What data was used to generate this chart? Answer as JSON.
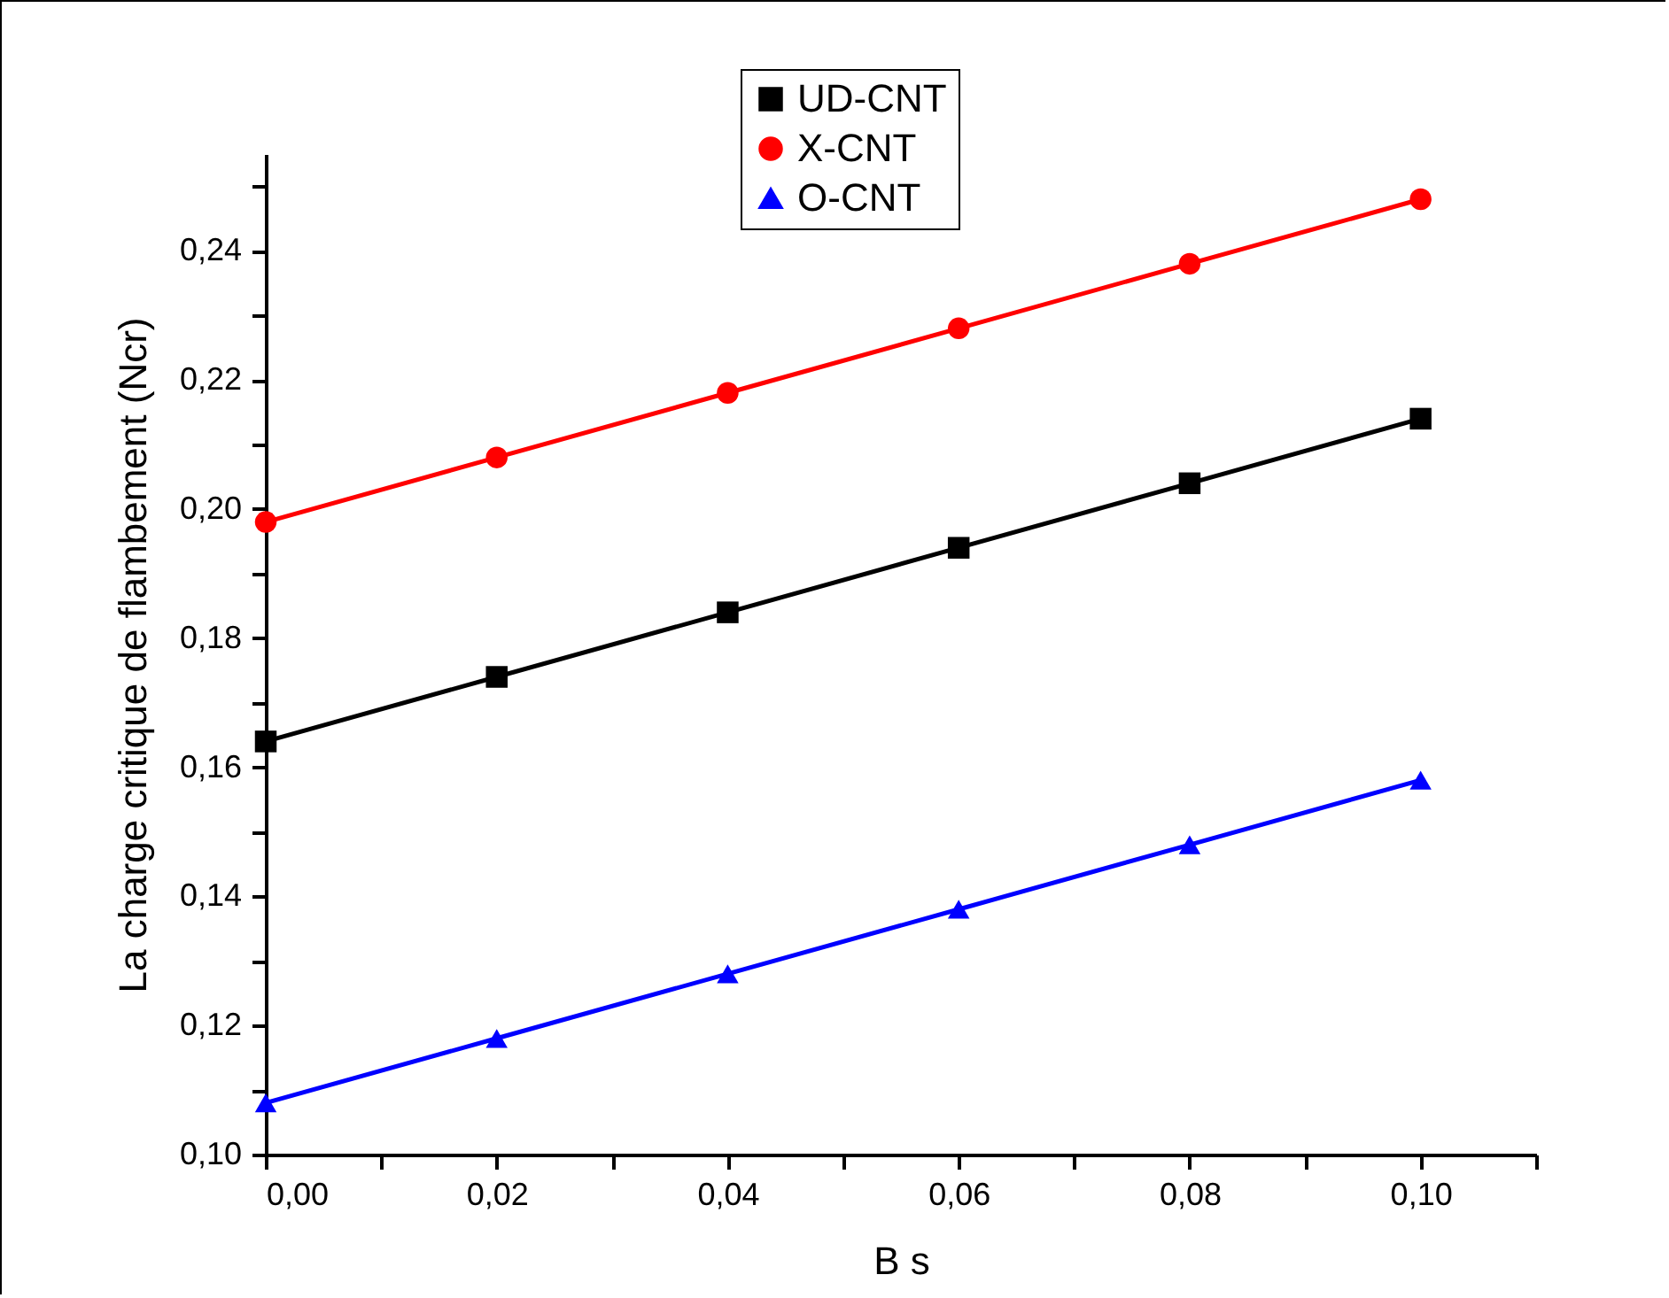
{
  "chart_data": {
    "type": "line",
    "xlabel": "B s",
    "ylabel": "La charge critique de flambement (Ncr)",
    "x": [
      0,
      0.02,
      0.04,
      0.06,
      0.08,
      0.1
    ],
    "series": [
      {
        "name": "UD-CNT",
        "color": "#000000",
        "marker": "square",
        "values": [
          0.164,
          0.174,
          0.184,
          0.194,
          0.204,
          0.214
        ]
      },
      {
        "name": "X-CNT",
        "color": "#ff0000",
        "marker": "circle",
        "values": [
          0.198,
          0.208,
          0.218,
          0.228,
          0.238,
          0.248
        ]
      },
      {
        "name": "O-CNT",
        "color": "#0000ff",
        "marker": "triangle",
        "values": [
          0.108,
          0.118,
          0.128,
          0.138,
          0.148,
          0.158
        ]
      }
    ],
    "xlim": [
      0,
      0.11
    ],
    "ylim": [
      0.1,
      0.255
    ],
    "xticks": [
      {
        "value": 0,
        "label": "0,00"
      },
      {
        "value": 0.01,
        "label": null
      },
      {
        "value": 0.02,
        "label": "0,02"
      },
      {
        "value": 0.03,
        "label": null
      },
      {
        "value": 0.04,
        "label": "0,04"
      },
      {
        "value": 0.05,
        "label": null
      },
      {
        "value": 0.06,
        "label": "0,06"
      },
      {
        "value": 0.07,
        "label": null
      },
      {
        "value": 0.08,
        "label": "0,08"
      },
      {
        "value": 0.09,
        "label": null
      },
      {
        "value": 0.1,
        "label": "0,10"
      },
      {
        "value": 0.11,
        "label": null
      }
    ],
    "yticks": [
      {
        "value": 0.1,
        "label": "0,10"
      },
      {
        "value": 0.11,
        "label": null
      },
      {
        "value": 0.12,
        "label": "0,12"
      },
      {
        "value": 0.13,
        "label": null
      },
      {
        "value": 0.14,
        "label": "0,14"
      },
      {
        "value": 0.15,
        "label": null
      },
      {
        "value": 0.16,
        "label": "0,16"
      },
      {
        "value": 0.17,
        "label": null
      },
      {
        "value": 0.18,
        "label": "0,18"
      },
      {
        "value": 0.19,
        "label": null
      },
      {
        "value": 0.2,
        "label": "0,20"
      },
      {
        "value": 0.21,
        "label": null
      },
      {
        "value": 0.22,
        "label": "0,22"
      },
      {
        "value": 0.23,
        "label": null
      },
      {
        "value": 0.24,
        "label": "0,24"
      },
      {
        "value": 0.25,
        "label": null
      }
    ],
    "legend": "top",
    "grid": false
  }
}
